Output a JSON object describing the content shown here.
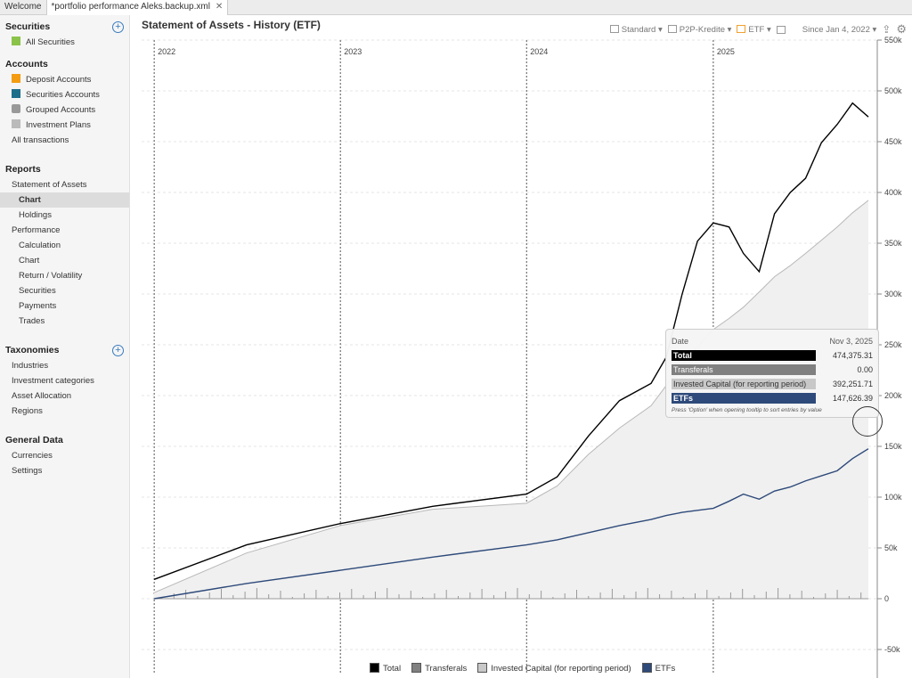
{
  "tabs": [
    {
      "label": "Welcome"
    },
    {
      "label": "*portfolio performance Aleks.backup.xml"
    }
  ],
  "sidebar": {
    "securities": {
      "title": "Securities",
      "items": [
        {
          "label": "All Securities"
        }
      ]
    },
    "accounts": {
      "title": "Accounts",
      "items": [
        {
          "label": "Deposit Accounts"
        },
        {
          "label": "Securities Accounts"
        },
        {
          "label": "Grouped Accounts"
        },
        {
          "label": "Investment Plans"
        },
        {
          "label": "All transactions"
        }
      ]
    },
    "reports": {
      "title": "Reports",
      "items": [
        {
          "label": "Statement of Assets"
        },
        {
          "label": "Chart"
        },
        {
          "label": "Holdings"
        },
        {
          "label": "Performance"
        },
        {
          "label": "Calculation"
        },
        {
          "label": "Chart"
        },
        {
          "label": "Return / Volatility"
        },
        {
          "label": "Securities"
        },
        {
          "label": "Payments"
        },
        {
          "label": "Trades"
        }
      ]
    },
    "taxonomies": {
      "title": "Taxonomies",
      "items": [
        {
          "label": "Industries"
        },
        {
          "label": "Investment categories"
        },
        {
          "label": "Asset Allocation"
        },
        {
          "label": "Regions"
        }
      ]
    },
    "general": {
      "title": "General Data",
      "items": [
        {
          "label": "Currencies"
        },
        {
          "label": "Settings"
        }
      ]
    }
  },
  "header": {
    "title": "Statement of Assets - History (ETF)"
  },
  "toolbar": {
    "standard": "Standard",
    "p2p": "P2P-Kredite",
    "etf": "ETF",
    "period": "Since Jan 4, 2022",
    "accent": "#f0a030"
  },
  "tooltip": {
    "date_label": "Date",
    "date": "Nov 3, 2025",
    "rows": [
      {
        "label": "Total",
        "value": "474,375.31",
        "color": "#000000"
      },
      {
        "label": "Transferals",
        "value": "0.00",
        "color": "#808080"
      },
      {
        "label": "Invested Capital (for reporting period)",
        "value": "392,251.71",
        "color": "#c8c8c8"
      },
      {
        "label": "ETFs",
        "value": "147,626.39",
        "color": "#2e4a7a"
      }
    ],
    "note": "Press 'Option' when opening tooltip to sort entries by value"
  },
  "chart_data": {
    "type": "line",
    "x_ticks": [
      "2022",
      "2023",
      "2024",
      "2025"
    ],
    "ylim": [
      -50000,
      550000
    ],
    "y_ticks": [
      "-50k",
      "0",
      "50k",
      "100k",
      "150k",
      "200k",
      "250k",
      "300k",
      "350k",
      "400k",
      "450k",
      "500k",
      "550k"
    ],
    "grid": true,
    "legend": "bottom",
    "x": [
      "2022-01",
      "2022-07",
      "2023-01",
      "2023-07",
      "2024-01",
      "2024-03",
      "2024-05",
      "2024-07",
      "2024-09",
      "2024-10",
      "2024-11",
      "2024-12",
      "2025-01",
      "2025-02",
      "2025-03",
      "2025-04",
      "2025-05",
      "2025-06",
      "2025-07",
      "2025-08",
      "2025-09",
      "2025-10",
      "2025-11"
    ],
    "series": [
      {
        "name": "Total",
        "color": "#000000",
        "values": [
          19000,
          53000,
          74000,
          91000,
          103000,
          120000,
          160000,
          195000,
          212000,
          238000,
          300000,
          352000,
          370000,
          366000,
          340000,
          322000,
          379000,
          400000,
          414000,
          449000,
          467000,
          488000,
          474375
        ]
      },
      {
        "name": "Transferals",
        "color": "#808080",
        "values": [
          0,
          0,
          0,
          0,
          0,
          0,
          0,
          0,
          0,
          0,
          0,
          0,
          0,
          0,
          0,
          0,
          0,
          0,
          0,
          0,
          0,
          0,
          0
        ]
      },
      {
        "name": "Invested Capital (for reporting period)",
        "color": "#c8c8c8",
        "values": [
          6000,
          45000,
          72000,
          88000,
          94000,
          111000,
          142000,
          168000,
          190000,
          210000,
          230000,
          248000,
          265000,
          276000,
          287000,
          302000,
          317000,
          328000,
          340000,
          353000,
          366000,
          380000,
          392252
        ]
      },
      {
        "name": "ETFs",
        "color": "#2e4a7a",
        "values": [
          0,
          15000,
          28000,
          41000,
          53000,
          58000,
          65000,
          72000,
          78000,
          82000,
          85000,
          87000,
          89000,
          96000,
          103000,
          98000,
          106000,
          110000,
          116000,
          121000,
          126000,
          138000,
          147626
        ]
      }
    ]
  }
}
